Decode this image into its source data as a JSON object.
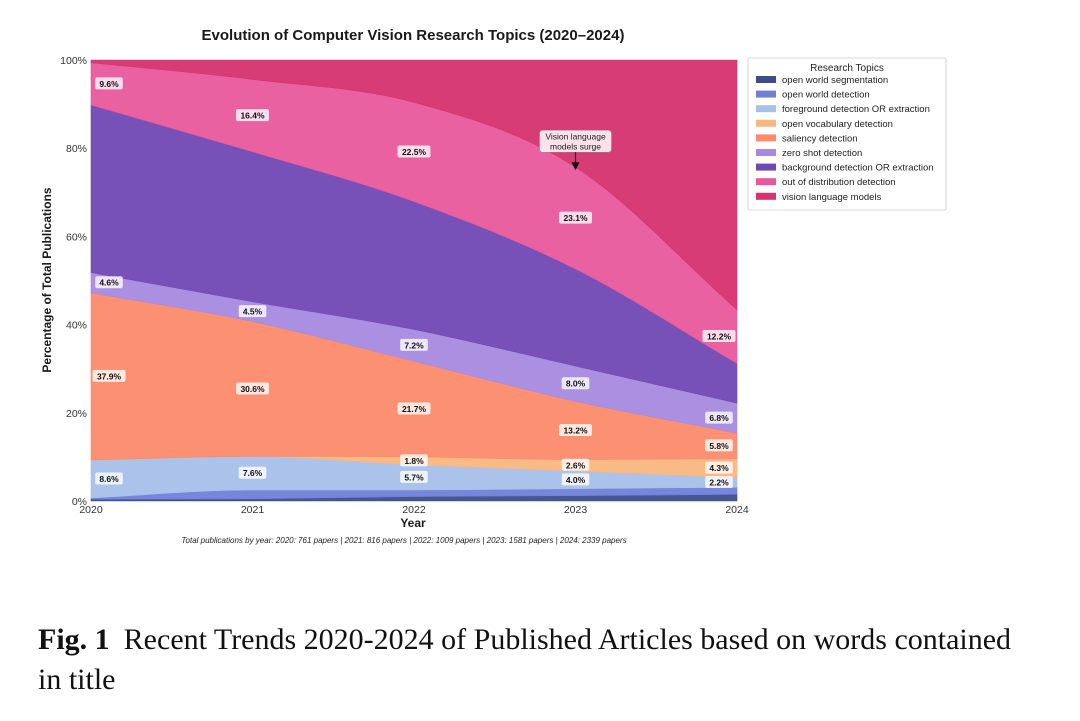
{
  "chart_data": {
    "type": "area",
    "stacked": true,
    "normalized": true,
    "title": "Evolution of Computer Vision Research Topics (2020–2024)",
    "xlabel": "Year",
    "ylabel": "Percentage of Total Publications",
    "x": [
      2020,
      2021,
      2022,
      2023,
      2024
    ],
    "x_tick_labels": [
      "2020",
      "2021",
      "2022",
      "2023",
      "2024"
    ],
    "y_tick_labels": [
      "0%",
      "20%",
      "40%",
      "60%",
      "80%",
      "100%"
    ],
    "ylim": [
      0,
      100
    ],
    "legend_title": "Research Topics",
    "legend_position": "right",
    "series": [
      {
        "name": "open world segmentation",
        "color": "#3d4d8a",
        "values": [
          0.4,
          0.5,
          1.0,
          1.2,
          1.5
        ],
        "labels": [
          "",
          "",
          "",
          "",
          ""
        ]
      },
      {
        "name": "open world detection",
        "color": "#6f7fd8",
        "values": [
          0.3,
          2.0,
          1.5,
          1.6,
          1.6
        ],
        "labels": [
          "",
          "",
          "",
          "",
          ""
        ]
      },
      {
        "name": "foreground detection OR extraction",
        "color": "#a7c0ea",
        "values": [
          8.6,
          7.6,
          5.7,
          4.0,
          2.2
        ],
        "labels": [
          "8.6%",
          "7.6%",
          "5.7%",
          "4.0%",
          "2.2%"
        ]
      },
      {
        "name": "open vocabulary detection",
        "color": "#f9b67e",
        "values": [
          0.0,
          0.0,
          1.8,
          2.6,
          4.3
        ],
        "labels": [
          "",
          "",
          "1.8%",
          "2.6%",
          "4.3%"
        ]
      },
      {
        "name": "saliency detection",
        "color": "#fc8a6b",
        "values": [
          37.9,
          30.6,
          21.7,
          13.2,
          5.8
        ],
        "labels": [
          "37.9%",
          "30.6%",
          "21.7%",
          "13.2%",
          "5.8%"
        ]
      },
      {
        "name": "zero shot detection",
        "color": "#a68ae0",
        "values": [
          4.6,
          4.5,
          7.2,
          8.0,
          6.8
        ],
        "labels": [
          "4.6%",
          "4.5%",
          "7.2%",
          "8.0%",
          "6.8%"
        ]
      },
      {
        "name": "background detection OR extraction",
        "color": "#7048b4",
        "values": [
          38.0,
          34.0,
          29.0,
          22.0,
          9.0
        ],
        "labels": [
          "",
          "",
          "",
          "",
          ""
        ]
      },
      {
        "name": "out of distribution detection",
        "color": "#e8599b",
        "values": [
          9.6,
          16.4,
          22.5,
          23.1,
          12.2
        ],
        "labels": [
          "9.6%",
          "16.4%",
          "22.5%",
          "23.1%",
          "12.2%"
        ]
      },
      {
        "name": "vision language models",
        "color": "#d6326e",
        "values": [
          0.6,
          4.4,
          9.6,
          24.3,
          56.6
        ],
        "labels": [
          "",
          "",
          "",
          "",
          ""
        ]
      }
    ],
    "annotation": {
      "text_lines": [
        "Vision language",
        "models surge"
      ],
      "x": 2023,
      "y": 75
    },
    "footnote": "Total publications by year: 2020: 761 papers | 2021: 816 papers | 2022: 1009 papers | 2023: 1581 papers | 2024: 2339 papers"
  },
  "caption": {
    "fig_label": "Fig. 1",
    "text": "Recent Trends 2020-2024 of Published Articles based on words contained in title"
  }
}
